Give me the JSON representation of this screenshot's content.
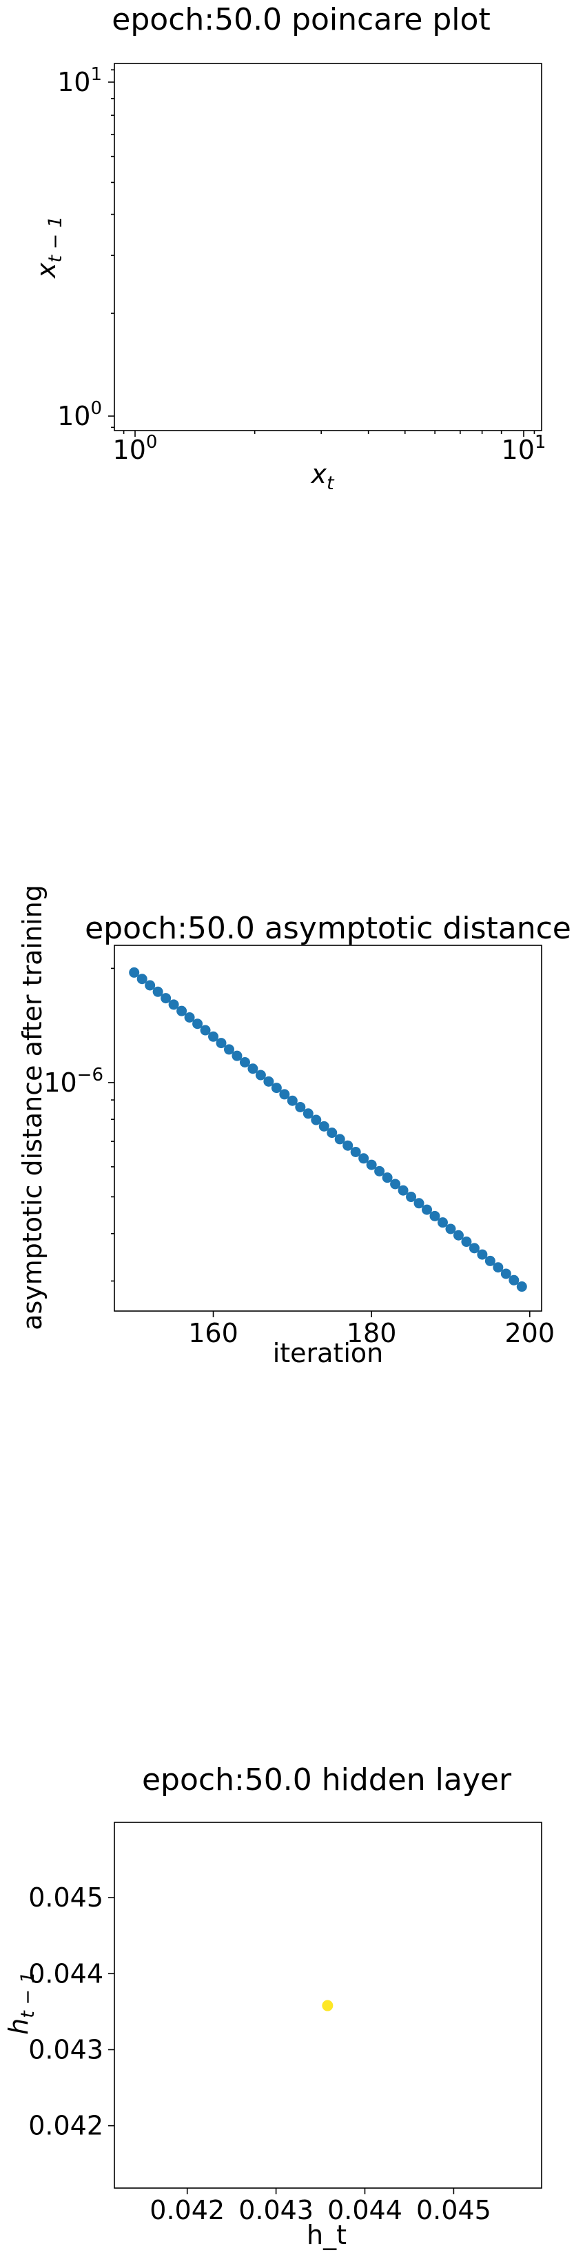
{
  "chart_data": [
    {
      "type": "scatter",
      "title": "epoch:50.0 poincare plot",
      "xlabel_base": "x",
      "xlabel_sub": "t",
      "ylabel_base": "x",
      "ylabel_sub": "t − 1",
      "xscale": "log",
      "yscale": "log",
      "xlim": [
        0.85,
        11.5
      ],
      "ylim": [
        0.88,
        11.5
      ],
      "x_ticks": [
        {
          "base": "10",
          "exp": "0"
        },
        {
          "base": "10",
          "exp": "1"
        }
      ],
      "y_ticks": [
        {
          "base": "10",
          "exp": "0"
        },
        {
          "base": "10",
          "exp": "1"
        }
      ],
      "points": []
    },
    {
      "type": "scatter",
      "title": "epoch:50.0 asymptotic distance",
      "xlabel": "iteration",
      "ylabel": "asymptotic distance after training",
      "yscale": "log",
      "xlim": [
        147.5,
        201.5
      ],
      "ylim": [
        2.5e-07,
        2.3e-06
      ],
      "x_ticks": [
        "160",
        "180",
        "200"
      ],
      "y_ticks": [
        {
          "base": "10",
          "exp": "−6",
          "value": 1e-06
        }
      ],
      "color": "#1f77b4",
      "x_start": 150,
      "x_end": 199,
      "y_start": 1.95e-06,
      "y_end": 2.9e-07
    },
    {
      "type": "scatter",
      "title": "epoch:50.0 hidden layer",
      "xlabel": "h_t",
      "ylabel_base": "h",
      "ylabel_sub": "t − 1",
      "xlim": [
        0.04118,
        0.04599
      ],
      "ylim": [
        0.04118,
        0.04599
      ],
      "x_ticks": [
        "0.042",
        "0.043",
        "0.044",
        "0.045"
      ],
      "y_ticks": [
        "0.042",
        "0.043",
        "0.044",
        "0.045"
      ],
      "color": "#fde725",
      "points": [
        {
          "x": 0.04358,
          "y": 0.04358
        }
      ]
    }
  ]
}
